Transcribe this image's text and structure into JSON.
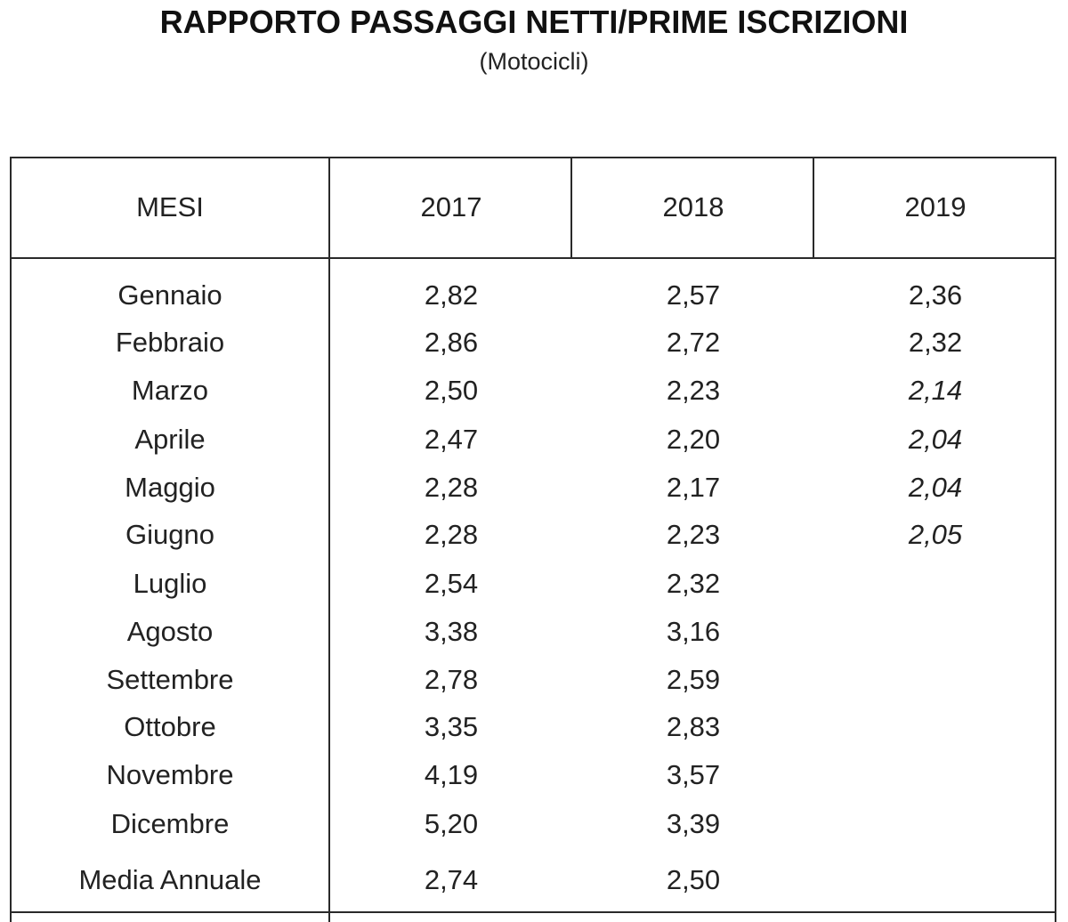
{
  "title": "RAPPORTO PASSAGGI NETTI/PRIME ISCRIZIONI",
  "subtitle": "(Motocicli)",
  "chart_data": {
    "type": "table",
    "title": "RAPPORTO PASSAGGI NETTI/PRIME ISCRIZIONI",
    "subtitle": "(Motocicli)",
    "columns": [
      "MESI",
      "2017",
      "2018",
      "2019"
    ],
    "rows": [
      {
        "label": "Gennaio",
        "values": [
          "2,82",
          "2,57",
          "2,36"
        ]
      },
      {
        "label": "Febbraio",
        "values": [
          "2,86",
          "2,72",
          "2,32"
        ]
      },
      {
        "label": "Marzo",
        "values": [
          "2,50",
          "2,23",
          "2,14"
        ]
      },
      {
        "label": "Aprile",
        "values": [
          "2,47",
          "2,20",
          "2,04"
        ]
      },
      {
        "label": "Maggio",
        "values": [
          "2,28",
          "2,17",
          "2,04"
        ]
      },
      {
        "label": "Giugno",
        "values": [
          "2,28",
          "2,23",
          "2,05"
        ]
      },
      {
        "label": "Luglio",
        "values": [
          "2,54",
          "2,32",
          ""
        ]
      },
      {
        "label": "Agosto",
        "values": [
          "3,38",
          "3,16",
          ""
        ]
      },
      {
        "label": "Settembre",
        "values": [
          "2,78",
          "2,59",
          ""
        ]
      },
      {
        "label": "Ottobre",
        "values": [
          "3,35",
          "2,83",
          ""
        ]
      },
      {
        "label": "Novembre",
        "values": [
          "4,19",
          "3,57",
          ""
        ]
      },
      {
        "label": "Dicembre",
        "values": [
          "5,20",
          "3,39",
          ""
        ]
      },
      {
        "label": "Media Annuale",
        "values": [
          "2,74",
          "2,50",
          ""
        ]
      }
    ],
    "italic_2019_rows": [
      "Marzo",
      "Aprile",
      "Maggio",
      "Giugno"
    ]
  }
}
